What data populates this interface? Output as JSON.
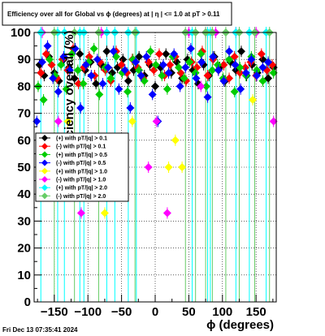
{
  "chart_data": {
    "type": "scatter",
    "title": "Efficiency over all for Global vs ϕ (degrees) at | η | <= 1.0 at pT > 0.11",
    "xlabel": "ϕ (degrees)",
    "ylabel": "Efficiency over all (%)",
    "xlim": [
      -180,
      180
    ],
    "ylim": [
      0,
      100
    ],
    "x_ticks": [
      -150,
      -100,
      -50,
      0,
      50,
      100,
      150
    ],
    "y_ticks": [
      0,
      10,
      20,
      30,
      40,
      50,
      60,
      70,
      80,
      90,
      100
    ],
    "grid": true,
    "legend_position": "lower-left",
    "series": [
      {
        "name": "(+) with pT/|q| > 0.1",
        "color": "#000000",
        "marker": "diamond",
        "x": [
          -172,
          -165,
          -158,
          -150,
          -143,
          -136,
          -128,
          -120,
          -112,
          -104,
          -96,
          -88,
          -80,
          -72,
          -64,
          -56,
          -48,
          -40,
          -32,
          -24,
          -16,
          -8,
          0,
          8,
          16,
          24,
          32,
          40,
          48,
          56,
          64,
          72,
          80,
          88,
          96,
          104,
          112,
          120,
          128,
          136,
          144,
          152,
          160,
          168,
          176
        ],
        "y": [
          88,
          84,
          91,
          85,
          82,
          90,
          87,
          83,
          92,
          86,
          89,
          81,
          88,
          93,
          85,
          87,
          90,
          82,
          86,
          91,
          84,
          88,
          80,
          87,
          92,
          85,
          89,
          83,
          90,
          86,
          81,
          88,
          84,
          91,
          87,
          82,
          89,
          86,
          93,
          84,
          88,
          85,
          90,
          83,
          87
        ]
      },
      {
        "name": "(-) with pT/|q| > 0.1",
        "color": "#ff0000",
        "marker": "diamond",
        "x": [
          -170,
          -162,
          -154,
          -146,
          -138,
          -130,
          -122,
          -114,
          -106,
          -98,
          -90,
          -82,
          -74,
          -66,
          -58,
          -50,
          -42,
          -34,
          -26,
          -18,
          -10,
          -2,
          6,
          14,
          22,
          30,
          38,
          46,
          54,
          62,
          70,
          78,
          86,
          94,
          102,
          110,
          118,
          126,
          134,
          142,
          150,
          158,
          166,
          174
        ],
        "y": [
          85,
          92,
          88,
          83,
          90,
          86,
          94,
          81,
          87,
          91,
          84,
          89,
          86,
          82,
          93,
          88,
          85,
          90,
          87,
          83,
          89,
          86,
          92,
          84,
          88,
          91,
          85,
          82,
          89,
          87,
          93,
          84,
          90,
          86,
          88,
          83,
          91,
          85,
          87,
          89,
          84,
          92,
          86,
          88
        ]
      },
      {
        "name": "(+) with pT/|q| > 0.5",
        "color": "#00cc00",
        "marker": "diamond",
        "x": [
          -174,
          -166,
          -157,
          -149,
          -140,
          -132,
          -124,
          -115,
          -107,
          -99,
          -91,
          -83,
          -74,
          -66,
          -58,
          -49,
          -41,
          -33,
          -24,
          -16,
          -7,
          1,
          10,
          18,
          26,
          35,
          43,
          51,
          60,
          68,
          76,
          85,
          93,
          101,
          110,
          118,
          126,
          135,
          143,
          151,
          160,
          168,
          176
        ],
        "y": [
          80,
          75,
          90,
          84,
          88,
          79,
          92,
          86,
          81,
          89,
          94,
          77,
          87,
          83,
          91,
          85,
          78,
          90,
          86,
          82,
          93,
          88,
          84,
          79,
          91,
          87,
          83,
          89,
          85,
          92,
          80,
          86,
          88,
          83,
          90,
          78,
          87,
          84,
          91,
          86,
          82,
          89,
          85
        ]
      },
      {
        "name": "(-) with pT/|q| > 0.5",
        "color": "#0000ff",
        "marker": "diamond",
        "x": [
          -176,
          -168,
          -160,
          -152,
          -144,
          -136,
          -127,
          -119,
          -111,
          -103,
          -95,
          -86,
          -78,
          -70,
          -62,
          -54,
          -45,
          -37,
          -29,
          -21,
          -13,
          -4,
          4,
          12,
          20,
          28,
          37,
          45,
          53,
          61,
          69,
          78,
          86,
          94,
          102,
          110,
          119,
          127,
          135,
          143,
          151,
          160,
          168
        ],
        "y": [
          67,
          89,
          95,
          83,
          78,
          91,
          86,
          94,
          72,
          88,
          84,
          90,
          81,
          87,
          93,
          79,
          86,
          72,
          89,
          84,
          91,
          77,
          67,
          88,
          85,
          92,
          80,
          87,
          94,
          83,
          89,
          76,
          91,
          86,
          82,
          93,
          88,
          79,
          85,
          90,
          84,
          87,
          89
        ]
      },
      {
        "name": "(+) with pT/|q| > 1.0",
        "color": "#ffff00",
        "marker": "diamond",
        "x": [
          -130,
          -75,
          -34,
          20,
          30,
          40,
          85,
          145
        ],
        "y": [
          67,
          33,
          67,
          50,
          60,
          50,
          100,
          75
        ]
      },
      {
        "name": "(-) with pT/|q| > 1.0",
        "color": "#ff00ff",
        "marker": "diamond",
        "x": [
          -168,
          -144,
          -110,
          -80,
          -10,
          2,
          18,
          50,
          68,
          75,
          90,
          120,
          150,
          176
        ],
        "y": [
          100,
          67,
          33,
          100,
          50,
          67,
          33,
          100,
          80,
          100,
          100,
          100,
          100,
          67
        ]
      },
      {
        "name": "(+) with pT/|q| > 2.0",
        "color": "#00ffff",
        "marker": "diamond",
        "x": [
          -170,
          -145,
          -135,
          -112,
          -106,
          -72,
          -60,
          -40,
          -28,
          55,
          78,
          82,
          120,
          140,
          165
        ],
        "y": [
          100,
          100,
          100,
          100,
          100,
          100,
          100,
          100,
          100,
          100,
          100,
          100,
          100,
          100,
          100
        ]
      },
      {
        "name": "(-) with pT/|q| > 2.0",
        "color": "#66cc66",
        "marker": "diamond",
        "x": [
          -150,
          -120,
          -84,
          -30,
          45,
          60,
          75,
          85,
          105,
          125,
          148,
          170
        ],
        "y": [
          100,
          100,
          100,
          100,
          100,
          100,
          100,
          100,
          100,
          100,
          100,
          100
        ]
      }
    ]
  },
  "footer": {
    "timestamp": "Fri Dec 13 07:35:41 2024"
  }
}
